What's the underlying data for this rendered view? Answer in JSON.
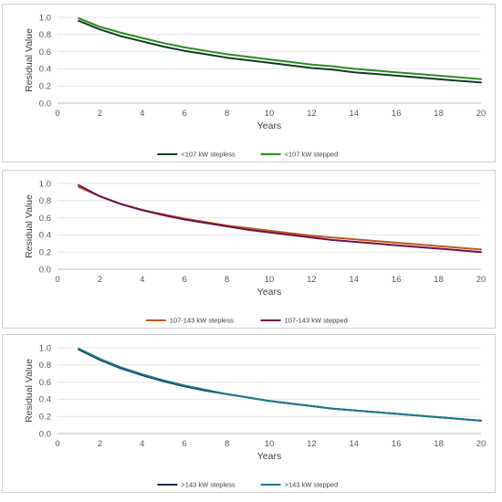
{
  "chart_data": [
    {
      "type": "line",
      "xlabel": "Years",
      "ylabel": "Residual Value",
      "xlim": [
        0,
        20
      ],
      "ylim": [
        0,
        1.0
      ],
      "x_ticks": [
        "0",
        "2",
        "4",
        "6",
        "8",
        "10",
        "12",
        "14",
        "16",
        "18",
        "20"
      ],
      "y_ticks": [
        "0.0",
        "0.2",
        "0.4",
        "0.6",
        "0.8",
        "1.0"
      ],
      "grid": "horizontal",
      "legend_position": "bottom",
      "x": [
        1,
        2,
        3,
        4,
        5,
        6,
        7,
        8,
        9,
        10,
        11,
        12,
        13,
        14,
        15,
        16,
        17,
        18,
        19,
        20
      ],
      "series": [
        {
          "name": "<107 kW stepless",
          "color": "#0d3d1e",
          "values": [
            0.96,
            0.86,
            0.78,
            0.72,
            0.66,
            0.61,
            0.57,
            0.53,
            0.5,
            0.47,
            0.44,
            0.41,
            0.39,
            0.36,
            0.34,
            0.32,
            0.3,
            0.28,
            0.26,
            0.24
          ]
        },
        {
          "name": "<107 kW stepped",
          "color": "#2d8a22",
          "values": [
            0.99,
            0.89,
            0.82,
            0.76,
            0.7,
            0.65,
            0.61,
            0.57,
            0.54,
            0.51,
            0.48,
            0.45,
            0.43,
            0.4,
            0.38,
            0.36,
            0.34,
            0.32,
            0.3,
            0.28
          ]
        }
      ]
    },
    {
      "type": "line",
      "xlabel": "Years",
      "ylabel": "Residual Value",
      "xlim": [
        0,
        20
      ],
      "ylim": [
        0,
        1.0
      ],
      "x_ticks": [
        "0",
        "2",
        "4",
        "6",
        "8",
        "10",
        "12",
        "14",
        "16",
        "18",
        "20"
      ],
      "y_ticks": [
        "0.0",
        "0.2",
        "0.4",
        "0.6",
        "0.8",
        "1.0"
      ],
      "grid": "horizontal",
      "legend_position": "bottom",
      "x": [
        1,
        2,
        3,
        4,
        5,
        6,
        7,
        8,
        9,
        10,
        11,
        12,
        13,
        14,
        15,
        16,
        17,
        18,
        19,
        20
      ],
      "series": [
        {
          "name": "107-143 kW stepless",
          "color": "#c0561c",
          "values": [
            0.96,
            0.85,
            0.76,
            0.69,
            0.64,
            0.59,
            0.55,
            0.51,
            0.48,
            0.45,
            0.42,
            0.39,
            0.37,
            0.35,
            0.33,
            0.31,
            0.29,
            0.27,
            0.25,
            0.23
          ]
        },
        {
          "name": "107-143 kW stepped",
          "color": "#6e0f4e",
          "values": [
            0.98,
            0.85,
            0.76,
            0.69,
            0.63,
            0.58,
            0.54,
            0.5,
            0.46,
            0.43,
            0.4,
            0.37,
            0.34,
            0.32,
            0.3,
            0.28,
            0.26,
            0.24,
            0.22,
            0.2
          ]
        }
      ]
    },
    {
      "type": "line",
      "xlabel": "Years",
      "ylabel": "Residual Value",
      "xlim": [
        0,
        20
      ],
      "ylim": [
        0,
        1.0
      ],
      "x_ticks": [
        "0",
        "2",
        "4",
        "6",
        "8",
        "10",
        "12",
        "14",
        "16",
        "18",
        "20"
      ],
      "y_ticks": [
        "0.0",
        "0.2",
        "0.4",
        "0.6",
        "0.8",
        "1.0"
      ],
      "grid": "horizontal",
      "legend_position": "bottom",
      "x": [
        1,
        2,
        3,
        4,
        5,
        6,
        7,
        8,
        9,
        10,
        11,
        12,
        13,
        14,
        15,
        16,
        17,
        18,
        19,
        20
      ],
      "series": [
        {
          "name": ">143 kW stepless",
          "color": "#0b2f4e",
          "values": [
            0.98,
            0.86,
            0.76,
            0.68,
            0.61,
            0.55,
            0.5,
            0.46,
            0.42,
            0.38,
            0.35,
            0.32,
            0.29,
            0.27,
            0.25,
            0.23,
            0.21,
            0.19,
            0.17,
            0.15
          ]
        },
        {
          "name": ">143 kW stepped",
          "color": "#1e7a8c",
          "values": [
            0.99,
            0.87,
            0.77,
            0.69,
            0.62,
            0.56,
            0.51,
            0.46,
            0.42,
            0.38,
            0.35,
            0.32,
            0.29,
            0.27,
            0.25,
            0.23,
            0.21,
            0.19,
            0.17,
            0.15
          ]
        }
      ]
    }
  ]
}
